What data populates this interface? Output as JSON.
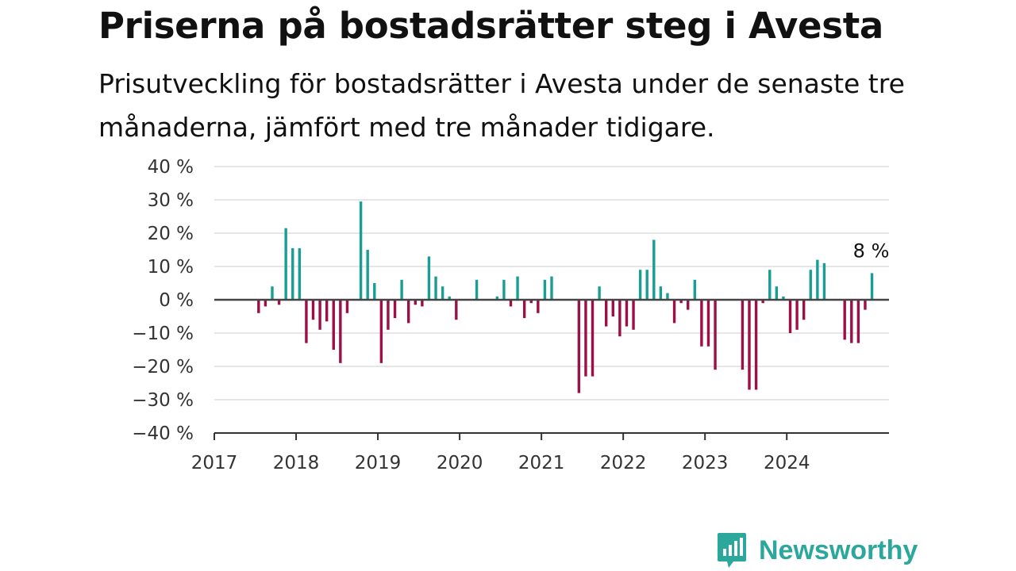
{
  "header": {
    "title": "Priserna på bostadsrätter steg i Avesta",
    "subtitle": "Prisutveckling för bostadsrätter i Avesta under de senaste tre månaderna, jämfört med tre månader tidigare."
  },
  "brand": {
    "name": "Newsworthy",
    "icon": "newsworthy-logo-icon",
    "color": "#2ba79c"
  },
  "chart_data": {
    "type": "bar",
    "x_start": "2017-01",
    "x_end": "2025-04",
    "x_ticks": [
      "2017",
      "2018",
      "2019",
      "2020",
      "2021",
      "2022",
      "2023",
      "2024"
    ],
    "y_ticks": [
      "40 %",
      "30 %",
      "20 %",
      "10 %",
      "0 %",
      "−10 %",
      "−20 %",
      "−30 %",
      "−40 %"
    ],
    "ylim": [
      -40,
      40
    ],
    "grid": true,
    "colors": {
      "positive": "#1a9e94",
      "negative": "#9c1047"
    },
    "last_value_label": "8 %",
    "series": [
      {
        "points": [
          {
            "x": "2017-07",
            "y": -4
          },
          {
            "x": "2017-08",
            "y": -2
          },
          {
            "x": "2017-09",
            "y": 4
          },
          {
            "x": "2017-10",
            "y": -1.5
          },
          {
            "x": "2017-11",
            "y": 21.5
          },
          {
            "x": "2017-12",
            "y": 15.5
          },
          {
            "x": "2018-01",
            "y": 15.5
          },
          {
            "x": "2018-02",
            "y": -13
          },
          {
            "x": "2018-03",
            "y": -6
          },
          {
            "x": "2018-04",
            "y": -9
          },
          {
            "x": "2018-05",
            "y": -6.5
          },
          {
            "x": "2018-06",
            "y": -15
          },
          {
            "x": "2018-07",
            "y": -19
          },
          {
            "x": "2018-08",
            "y": -4
          },
          {
            "x": "2018-10",
            "y": 29.5
          },
          {
            "x": "2018-11",
            "y": 15
          },
          {
            "x": "2018-12",
            "y": 5
          },
          {
            "x": "2019-01",
            "y": -19
          },
          {
            "x": "2019-02",
            "y": -9
          },
          {
            "x": "2019-03",
            "y": -5.5
          },
          {
            "x": "2019-04",
            "y": 6
          },
          {
            "x": "2019-05",
            "y": -7
          },
          {
            "x": "2019-06",
            "y": -1.5
          },
          {
            "x": "2019-07",
            "y": -2
          },
          {
            "x": "2019-08",
            "y": 13
          },
          {
            "x": "2019-09",
            "y": 7
          },
          {
            "x": "2019-10",
            "y": 4
          },
          {
            "x": "2019-11",
            "y": 1
          },
          {
            "x": "2019-12",
            "y": -6
          },
          {
            "x": "2020-03",
            "y": 6
          },
          {
            "x": "2020-06",
            "y": 1
          },
          {
            "x": "2020-07",
            "y": 6
          },
          {
            "x": "2020-08",
            "y": -2
          },
          {
            "x": "2020-09",
            "y": 7
          },
          {
            "x": "2020-10",
            "y": -5.5
          },
          {
            "x": "2020-11",
            "y": -1
          },
          {
            "x": "2020-12",
            "y": -4
          },
          {
            "x": "2021-01",
            "y": 6
          },
          {
            "x": "2021-02",
            "y": 7
          },
          {
            "x": "2021-06",
            "y": -28
          },
          {
            "x": "2021-07",
            "y": -23
          },
          {
            "x": "2021-08",
            "y": -23
          },
          {
            "x": "2021-09",
            "y": 4
          },
          {
            "x": "2021-10",
            "y": -8
          },
          {
            "x": "2021-11",
            "y": -5
          },
          {
            "x": "2021-12",
            "y": -11
          },
          {
            "x": "2022-01",
            "y": -8
          },
          {
            "x": "2022-02",
            "y": -9
          },
          {
            "x": "2022-03",
            "y": 9
          },
          {
            "x": "2022-04",
            "y": 9
          },
          {
            "x": "2022-05",
            "y": 18
          },
          {
            "x": "2022-06",
            "y": 4
          },
          {
            "x": "2022-07",
            "y": 2
          },
          {
            "x": "2022-08",
            "y": -7
          },
          {
            "x": "2022-09",
            "y": -1
          },
          {
            "x": "2022-10",
            "y": -3
          },
          {
            "x": "2022-11",
            "y": 6
          },
          {
            "x": "2022-12",
            "y": -14
          },
          {
            "x": "2023-01",
            "y": -14
          },
          {
            "x": "2023-02",
            "y": -21
          },
          {
            "x": "2023-06",
            "y": -21
          },
          {
            "x": "2023-07",
            "y": -27
          },
          {
            "x": "2023-08",
            "y": -27
          },
          {
            "x": "2023-09",
            "y": -1
          },
          {
            "x": "2023-10",
            "y": 9
          },
          {
            "x": "2023-11",
            "y": 4
          },
          {
            "x": "2023-12",
            "y": 1
          },
          {
            "x": "2024-01",
            "y": -10
          },
          {
            "x": "2024-02",
            "y": -9
          },
          {
            "x": "2024-03",
            "y": -6
          },
          {
            "x": "2024-04",
            "y": 9
          },
          {
            "x": "2024-05",
            "y": 12
          },
          {
            "x": "2024-06",
            "y": 11
          },
          {
            "x": "2024-09",
            "y": -12
          },
          {
            "x": "2024-10",
            "y": -13
          },
          {
            "x": "2024-11",
            "y": -13
          },
          {
            "x": "2024-12",
            "y": -3
          },
          {
            "x": "2025-01",
            "y": 8
          }
        ]
      }
    ]
  }
}
